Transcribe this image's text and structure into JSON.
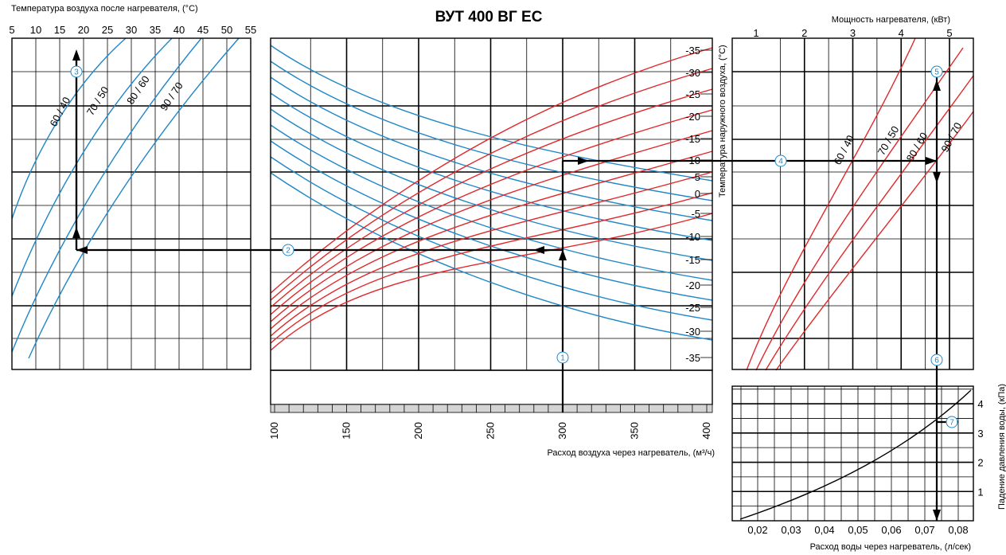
{
  "title": "ВУТ 400 ВГ ЕС",
  "chart_data": [
    {
      "panel": "left",
      "type": "line",
      "xlabel": "Температура воздуха после нагревателя, (°C)",
      "x_ticks": [
        "5",
        "10",
        "15",
        "20",
        "25",
        "30",
        "35",
        "40",
        "45",
        "50",
        "55"
      ],
      "xlim": [
        5,
        55
      ],
      "series": [
        {
          "name": "60 / 40",
          "color": "#1f87c8"
        },
        {
          "name": "70 / 50",
          "color": "#1f87c8"
        },
        {
          "name": "80 / 60",
          "color": "#1f87c8"
        },
        {
          "name": "90 / 70",
          "color": "#1f87c8"
        }
      ]
    },
    {
      "panel": "middle",
      "type": "line",
      "xlabel": "Расход воздуха через нагреватель, (м³/ч)",
      "ylabel": "Температура наружного воздуха, (°C)",
      "x_ticks": [
        "100",
        "150",
        "200",
        "250",
        "300",
        "350",
        "400"
      ],
      "xlim": [
        100,
        400
      ],
      "y_ticks": [
        "-35",
        "-30",
        "-25",
        "-20",
        "-15",
        "-10",
        "-5",
        "0",
        "-5",
        "-10",
        "-15",
        "-20",
        "-25",
        "-30",
        "-35"
      ],
      "grid": true
    },
    {
      "panel": "right-top",
      "type": "line",
      "xlabel": "Мощность нагревателя, (кВт)",
      "x_ticks": [
        "1",
        "2",
        "3",
        "4",
        "5"
      ],
      "xlim": [
        1,
        5
      ],
      "series": [
        {
          "name": "60 / 40",
          "color": "#e0282a"
        },
        {
          "name": "70 / 50",
          "color": "#e0282a"
        },
        {
          "name": "80 / 60",
          "color": "#e0282a"
        },
        {
          "name": "90 / 70",
          "color": "#e0282a"
        }
      ]
    },
    {
      "panel": "right-bottom",
      "type": "line",
      "xlabel": "Расход воды через нагреватель, (л/сек)",
      "ylabel": "Падение давления воды, (кПа)",
      "x_ticks": [
        "0,02",
        "0,03",
        "0,04",
        "0,05",
        "0,06",
        "0,07",
        "0,08"
      ],
      "xlim": [
        0.015,
        0.082
      ],
      "y_ticks": [
        "1",
        "2",
        "3",
        "4"
      ],
      "ylim": [
        0,
        4.6
      ]
    }
  ],
  "example_path": {
    "markers": [
      "1",
      "2",
      "3",
      "4",
      "5",
      "6",
      "7"
    ],
    "air_flow": 300,
    "outdoor_temp": -12,
    "air_after": 19,
    "power": 4.7,
    "water_flow": 0.073,
    "pressure_drop": 3.7
  }
}
